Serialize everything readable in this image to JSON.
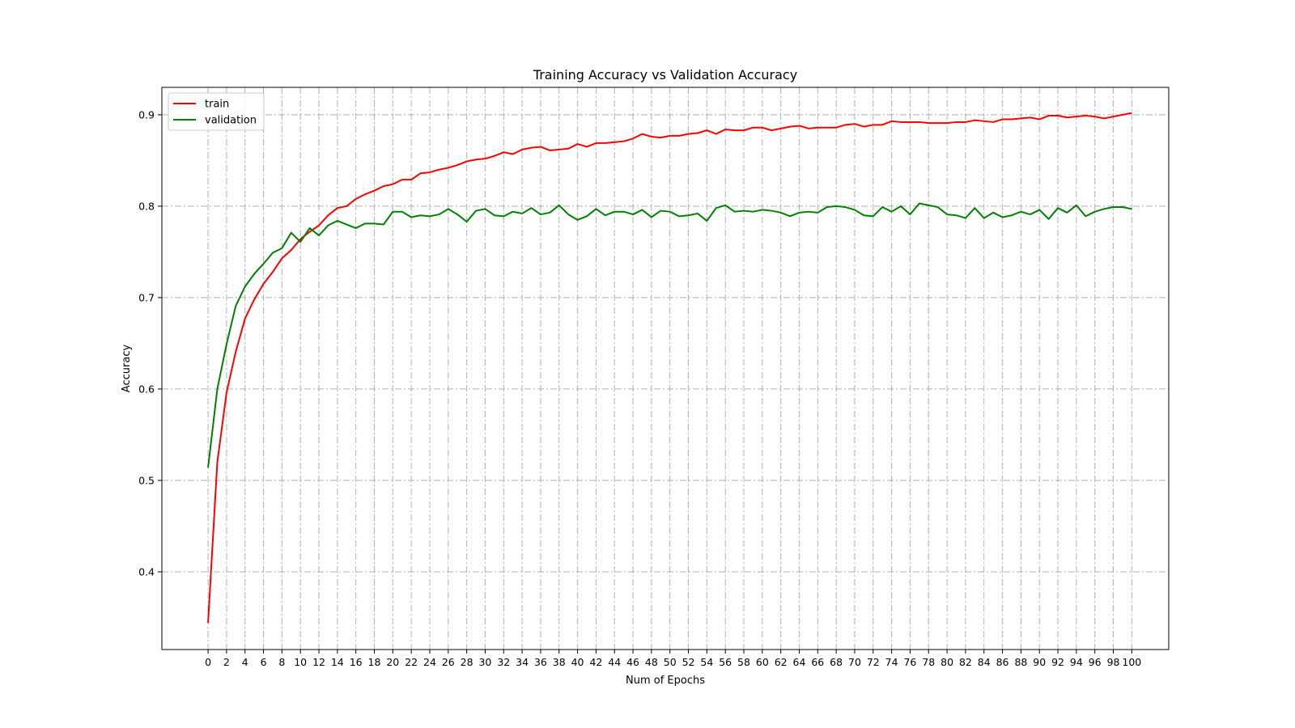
{
  "colors": {
    "train": "#ff0000",
    "validation": "#008000",
    "grid": "#b0b0b0"
  },
  "chart_data": {
    "type": "line",
    "title": "Training Accuracy vs Validation Accuracy",
    "xlabel": "Num of Epochs",
    "ylabel": "Accuracy",
    "xlim": [
      -5,
      104
    ],
    "ylim": [
      0.315,
      0.93
    ],
    "xticks": [
      0,
      2,
      4,
      6,
      8,
      10,
      12,
      14,
      16,
      18,
      20,
      22,
      24,
      26,
      28,
      30,
      32,
      34,
      36,
      38,
      40,
      42,
      44,
      46,
      48,
      50,
      52,
      54,
      56,
      58,
      60,
      62,
      64,
      66,
      68,
      70,
      72,
      74,
      76,
      78,
      80,
      82,
      84,
      86,
      88,
      90,
      92,
      94,
      96,
      98,
      100
    ],
    "xtick_labels": [
      "0",
      "2",
      "4",
      "6",
      "8",
      "10",
      "12",
      "14",
      "16",
      "18",
      "20",
      "22",
      "24",
      "26",
      "28",
      "30",
      "32",
      "34",
      "36",
      "38",
      "40",
      "42",
      "44",
      "46",
      "48",
      "50",
      "52",
      "54",
      "56",
      "58",
      "60",
      "62",
      "64",
      "66",
      "68",
      "70",
      "72",
      "74",
      "76",
      "78",
      "80",
      "82",
      "84",
      "86",
      "88",
      "90",
      "92",
      "94",
      "96",
      "98",
      "100"
    ],
    "yticks": [
      0.4,
      0.5,
      0.6,
      0.7,
      0.8,
      0.9
    ],
    "ytick_labels": [
      "0.4",
      "0.5",
      "0.6",
      "0.7",
      "0.8",
      "0.9"
    ],
    "grid": true,
    "legend_position": "top-left",
    "series": [
      {
        "name": "train",
        "color": "#ff0000",
        "values": [
          0.344,
          0.52,
          0.596,
          0.641,
          0.677,
          0.698,
          0.715,
          0.728,
          0.743,
          0.752,
          0.764,
          0.772,
          0.779,
          0.79,
          0.798,
          0.8,
          0.808,
          0.813,
          0.817,
          0.822,
          0.824,
          0.829,
          0.829,
          0.836,
          0.837,
          0.84,
          0.842,
          0.845,
          0.849,
          0.851,
          0.852,
          0.855,
          0.859,
          0.857,
          0.862,
          0.864,
          0.865,
          0.861,
          0.862,
          0.863,
          0.868,
          0.865,
          0.869,
          0.869,
          0.87,
          0.871,
          0.874,
          0.879,
          0.876,
          0.875,
          0.877,
          0.877,
          0.879,
          0.88,
          0.883,
          0.879,
          0.884,
          0.883,
          0.883,
          0.886,
          0.886,
          0.883,
          0.885,
          0.887,
          0.888,
          0.885,
          0.886,
          0.886,
          0.886,
          0.889,
          0.89,
          0.887,
          0.889,
          0.889,
          0.893,
          0.892,
          0.892,
          0.892,
          0.891,
          0.891,
          0.891,
          0.892,
          0.892,
          0.894,
          0.893,
          0.892,
          0.895,
          0.895,
          0.896,
          0.897,
          0.895,
          0.899,
          0.899,
          0.897,
          0.898,
          0.899,
          0.898,
          0.896,
          0.898,
          0.9,
          0.902
        ]
      },
      {
        "name": "validation",
        "color": "#008000",
        "values": [
          0.514,
          0.6,
          0.649,
          0.691,
          0.712,
          0.726,
          0.737,
          0.749,
          0.754,
          0.771,
          0.761,
          0.776,
          0.768,
          0.779,
          0.784,
          0.78,
          0.776,
          0.781,
          0.781,
          0.78,
          0.794,
          0.794,
          0.788,
          0.79,
          0.789,
          0.791,
          0.797,
          0.791,
          0.783,
          0.795,
          0.797,
          0.79,
          0.789,
          0.794,
          0.792,
          0.798,
          0.791,
          0.793,
          0.801,
          0.791,
          0.785,
          0.789,
          0.797,
          0.79,
          0.794,
          0.794,
          0.791,
          0.796,
          0.788,
          0.795,
          0.794,
          0.789,
          0.79,
          0.792,
          0.784,
          0.798,
          0.801,
          0.794,
          0.795,
          0.794,
          0.796,
          0.795,
          0.793,
          0.789,
          0.793,
          0.794,
          0.793,
          0.799,
          0.8,
          0.799,
          0.796,
          0.79,
          0.789,
          0.799,
          0.794,
          0.8,
          0.791,
          0.803,
          0.801,
          0.799,
          0.791,
          0.79,
          0.787,
          0.798,
          0.787,
          0.793,
          0.788,
          0.79,
          0.794,
          0.791,
          0.796,
          0.786,
          0.798,
          0.793,
          0.801,
          0.789,
          0.794,
          0.797,
          0.799,
          0.799,
          0.797
        ]
      }
    ]
  }
}
